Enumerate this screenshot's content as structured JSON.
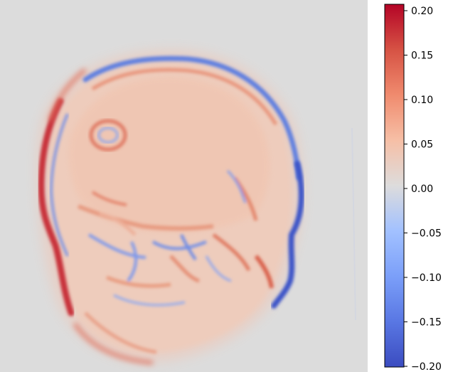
{
  "chart_data": {
    "type": "heatmap",
    "title": "",
    "xlabel": "",
    "ylabel": "",
    "colormap": "coolwarm",
    "vmin": -0.2,
    "vmax": 0.2,
    "image_content": "sagittal head MRI signed-difference map",
    "background_color": "#dcdcdc",
    "colorbar": {
      "position": "right",
      "min_color": "#3b4cc0",
      "mid_color": "#dddcdc",
      "max_color": "#b40426",
      "ticks": [
        {
          "value": 0.2,
          "label": "0.20"
        },
        {
          "value": 0.15,
          "label": "0.15"
        },
        {
          "value": 0.1,
          "label": "0.10"
        },
        {
          "value": 0.05,
          "label": "0.05"
        },
        {
          "value": 0.0,
          "label": "0.00"
        },
        {
          "value": -0.05,
          "label": "−0.05"
        },
        {
          "value": -0.1,
          "label": "−0.10"
        },
        {
          "value": -0.15,
          "label": "−0.15"
        },
        {
          "value": -0.2,
          "label": "−0.20"
        }
      ]
    }
  }
}
